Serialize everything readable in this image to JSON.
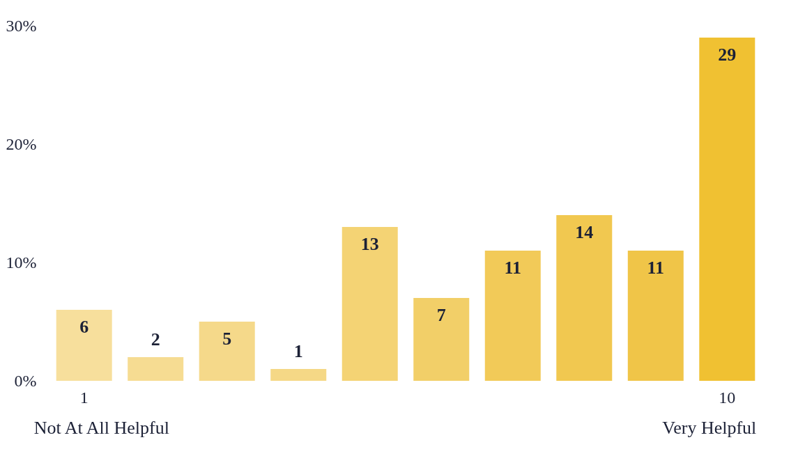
{
  "chart_data": {
    "type": "bar",
    "categories": [
      "1",
      null,
      null,
      null,
      null,
      null,
      null,
      null,
      null,
      "10"
    ],
    "values": [
      6,
      2,
      5,
      1,
      13,
      7,
      11,
      14,
      11,
      29
    ],
    "colors": [
      "#f7df9c",
      "#f6dc92",
      "#f5d98a",
      "#f5d886",
      "#f4d374",
      "#f2cf68",
      "#f2ca58",
      "#f1c850",
      "#f0c548",
      "#f0c132"
    ],
    "ylim": [
      0,
      30
    ],
    "yticks": [
      {
        "value": 0,
        "label": "0%"
      },
      {
        "value": 10,
        "label": "10%"
      },
      {
        "value": 20,
        "label": "20%"
      },
      {
        "value": 30,
        "label": "30%"
      }
    ],
    "data_labels": true,
    "grid": false,
    "annotations": [
      "Not At All Helpful",
      "Very Helpful"
    ]
  }
}
